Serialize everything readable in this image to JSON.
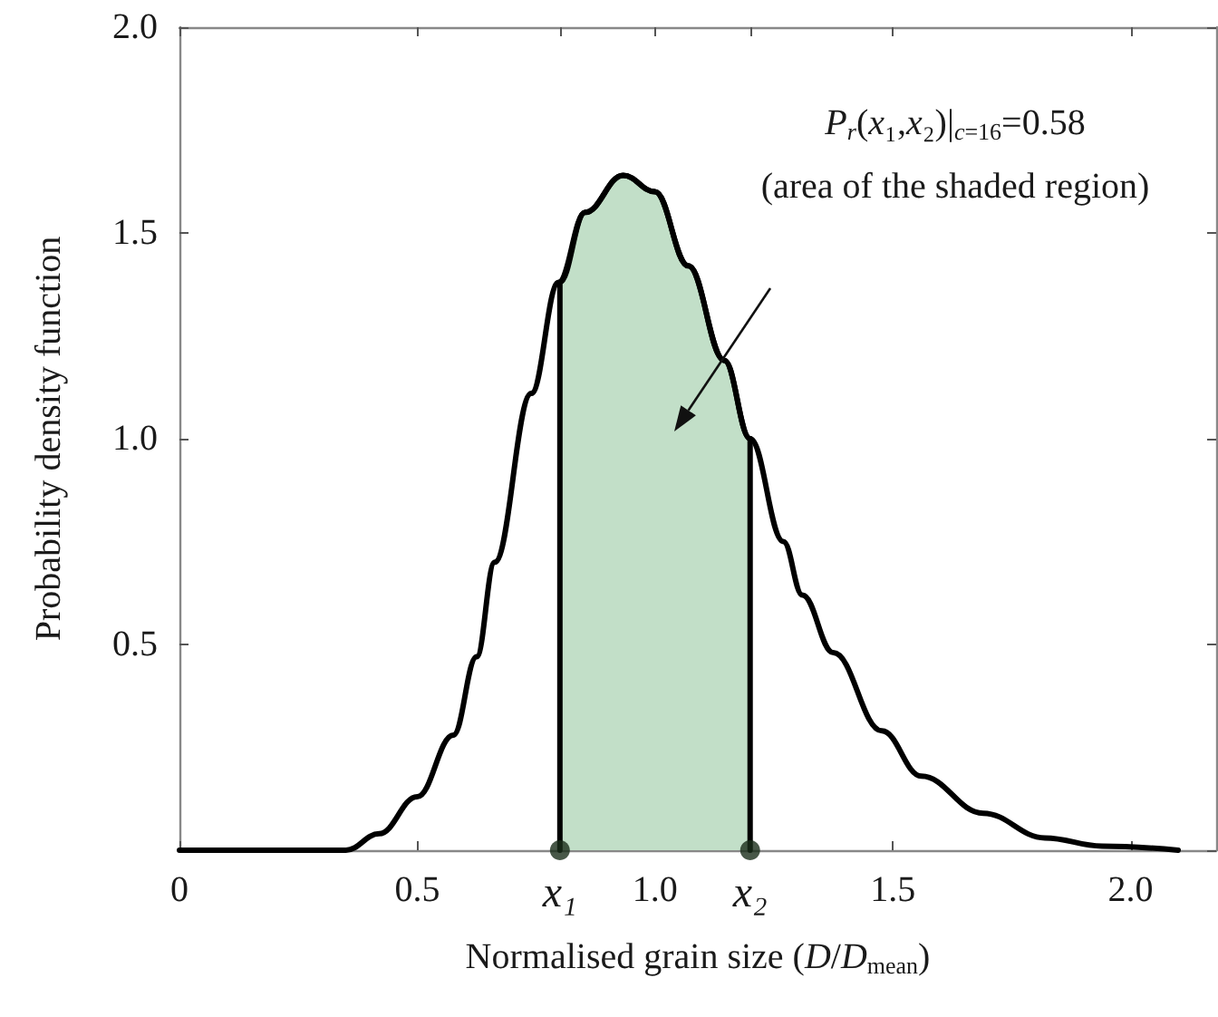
{
  "chart_data": {
    "type": "line",
    "xlabel": "Normalised grain size (D/D$_{mean}$)",
    "ylabel": "Probability density function",
    "annotations": [
      "P$_{r}$(x₁,x₂)|$_{c=16}$=0.58",
      "(area of the shaded region)"
    ],
    "xlim": [
      0,
      2.18
    ],
    "xticks": [
      0,
      0.5,
      {
        "value": 0.8,
        "label": "x₁"
      },
      {
        "value": 1,
        "label": "1.0"
      },
      {
        "value": 1.2,
        "label": "x₂"
      },
      1.5,
      {
        "value": 2,
        "label": "2.0"
      }
    ],
    "ylim": [
      0,
      2
    ],
    "yticks": [
      {
        "value": 0,
        "label": null
      },
      0.5,
      {
        "value": 1,
        "label": "1.0"
      },
      1.5,
      {
        "value": 2,
        "label": "2.0"
      }
    ],
    "grid": false,
    "series": [
      {
        "type": "area",
        "color": "#c2dfc8",
        "marker": "none",
        "x": [
          0.8,
          0.8,
          0.853,
          0.933,
          1.0,
          1.07,
          1.146,
          1.2,
          1.2
        ],
        "values": [
          0,
          1.38,
          1.55,
          1.64,
          1.6,
          1.42,
          1.19,
          1.0,
          0
        ]
      },
      {
        "color": "#000000",
        "marker": "none",
        "x": [
          0,
          0.3,
          0.35,
          0.42,
          0.5,
          0.576,
          0.625,
          0.663,
          0.74,
          0.797,
          0.853,
          0.933,
          1.0,
          1.07,
          1.146,
          1.2,
          1.27,
          1.31,
          1.375,
          1.477,
          1.56,
          1.69,
          1.82,
          1.94,
          2.1
        ],
        "values": [
          0,
          0,
          0,
          0.04,
          0.13,
          0.28,
          0.47,
          0.7,
          1.11,
          1.38,
          1.55,
          1.64,
          1.6,
          1.42,
          1.19,
          1.0,
          0.75,
          0.62,
          0.48,
          0.29,
          0.18,
          0.09,
          0.03,
          0.01,
          0
        ]
      },
      {
        "type": "scatter",
        "color": "#1a2e1a",
        "marker": "circle",
        "x": [
          0.8,
          1.2
        ],
        "values": [
          0,
          0
        ]
      }
    ]
  }
}
